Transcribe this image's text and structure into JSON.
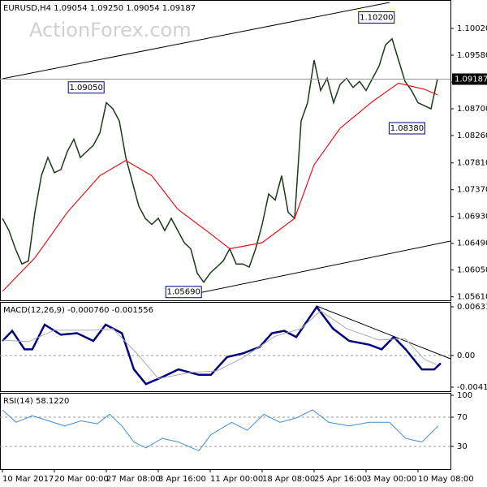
{
  "chart_data": [
    {
      "type": "line",
      "title": "EURUSD,H4  1.09054 1.09250 1.09054 1.09187",
      "watermark": "ActionForex.com",
      "xlim": [
        -0.375,
        69
      ],
      "ylim": [
        1.055533,
        1.104867
      ],
      "yticks": [
        {
          "value": 1.1002,
          "label": "1.10020"
        },
        {
          "value": 1.0958,
          "label": "1.09580"
        },
        {
          "value": 1.0914,
          "label": "1.09140"
        },
        {
          "value": 1.087,
          "label": "1.08700"
        },
        {
          "value": 1.0826,
          "label": "1.08260"
        },
        {
          "value": 1.0781,
          "label": "1.07810"
        },
        {
          "value": 1.0737,
          "label": "1.07370"
        },
        {
          "value": 1.0693,
          "label": "1.06930"
        },
        {
          "value": 1.0649,
          "label": "1.06490"
        },
        {
          "value": 1.0605,
          "label": "1.06050"
        },
        {
          "value": 1.0561,
          "label": "1.05610"
        }
      ],
      "last_price": 1.09187,
      "series": [
        {
          "color": "#1a3a1a",
          "width": 1.5,
          "values": [
            1.069,
            1.067,
            1.064,
            1.0615,
            1.062,
            1.07,
            1.076,
            1.079,
            1.0765,
            1.077,
            1.08,
            1.082,
            1.079,
            1.08,
            1.081,
            1.083,
            1.088,
            1.087,
            1.085,
            1.079,
            1.075,
            1.071,
            1.069,
            1.068,
            1.069,
            1.067,
            1.069,
            1.067,
            1.065,
            1.064,
            1.06,
            1.0585,
            1.06,
            1.061,
            1.062,
            1.064,
            1.0615,
            1.0615,
            1.061,
            1.064,
            1.068,
            1.073,
            1.072,
            1.076,
            1.07,
            1.069,
            1.085,
            1.088,
            1.095,
            1.09,
            1.092,
            1.088,
            1.091,
            1.092,
            1.0905,
            1.0915,
            1.09,
            1.092,
            1.094,
            1.0975,
            1.0985,
            1.095,
            1.0915,
            1.09,
            1.088,
            1.0875,
            1.087,
            1.0919
          ]
        },
        {
          "color": "#e8141c",
          "width": 1.2,
          "x": [
            0,
            5,
            10,
            15,
            19,
            23,
            27,
            32,
            35,
            40,
            45,
            48,
            52,
            57,
            61,
            65,
            67
          ],
          "values": [
            1.057,
            1.0625,
            1.07,
            1.076,
            1.0785,
            1.076,
            1.0705,
            1.0665,
            1.064,
            1.065,
            1.069,
            1.0778,
            1.0838,
            1.0882,
            1.0912,
            1.0902,
            1.0893
          ]
        }
      ],
      "annotations": [
        {
          "label": "1.10200",
          "value": 1.102,
          "x": 60.6
        },
        {
          "label": "1.09050",
          "value": 1.0905,
          "x": 15.9
        },
        {
          "label": "1.08380",
          "value": 1.0838,
          "x": 65.3
        },
        {
          "label": "1.05690",
          "value": 1.0569,
          "x": 30.9
        }
      ]
    },
    {
      "type": "line",
      "title": "MACD(12,26,9) -0.000760 -0.001556",
      "xlim": [
        -0.375,
        69
      ],
      "ylim": [
        -0.00463,
        0.00695
      ],
      "yticks": [
        0.006319,
        {
          "value": 0,
          "label": "0.00"
        },
        -0.004102
      ],
      "levels": [
        0
      ],
      "series": [
        {
          "color": "#000080",
          "width": 2.5,
          "x": [
            0,
            1.5,
            3.4,
            4.6,
            6.5,
            9,
            11.5,
            14,
            15.9,
            18.4,
            20.25,
            22.1,
            24.6,
            27.1,
            30.25,
            32.1,
            34.6,
            37.1,
            39.6,
            41.5,
            43.4,
            45.25,
            48.4,
            50.9,
            53.4,
            56.5,
            58.4,
            60.25,
            62.1,
            64.6,
            66.5,
            67.5
          ],
          "values": [
            0.0019,
            0.0032,
            0.0008,
            0.0008,
            0.004,
            0.0027,
            0.0029,
            0.0019,
            0.004,
            0.0029,
            -0.0018,
            -0.0037,
            -0.0028,
            -0.0018,
            -0.0025,
            -0.0025,
            -0.0002,
            0.0003,
            0.0011,
            0.0029,
            0.0032,
            0.0024,
            0.0063,
            0.0035,
            0.0019,
            0.0014,
            0.0008,
            0.0024,
            0.0008,
            -0.0018,
            -0.0018,
            -0.001
          ]
        },
        {
          "color": "#aaaaaa",
          "width": 1,
          "x": [
            0,
            4,
            8,
            14,
            17,
            21,
            24,
            29,
            33,
            37,
            42,
            46,
            49,
            53,
            58,
            62,
            65,
            67
          ],
          "values": [
            0.002,
            0.0018,
            0.0033,
            0.0033,
            0.0035,
            0,
            -0.003,
            -0.0022,
            -0.002,
            -0.0003,
            0.0025,
            0.0035,
            0.0058,
            0.0035,
            0.002,
            0.0022,
            -0.0005,
            -0.0012
          ]
        }
      ]
    },
    {
      "type": "line",
      "title": "RSI(14) 58.1220",
      "xlim": [
        -0.375,
        69
      ],
      "ylim": [
        -1.1,
        103.3
      ],
      "yticks": [
        100,
        70,
        30
      ],
      "levels": [
        70,
        30
      ],
      "xticks": [
        {
          "value": 0,
          "label": "10 Mar 2017"
        },
        {
          "value": 8,
          "label": "20 Mar 00:00"
        },
        {
          "value": 16,
          "label": "27 Mar 08:00"
        },
        {
          "value": 24,
          "label": "3 Apr 16:00"
        },
        {
          "value": 32,
          "label": "11 Apr 00:00"
        },
        {
          "value": 40,
          "label": "18 Apr 08:00"
        },
        {
          "value": 48,
          "label": "25 Apr 16:00"
        },
        {
          "value": 56,
          "label": "3 May 00:00"
        },
        {
          "value": 64,
          "label": "10 May 08:00"
        }
      ],
      "series": [
        {
          "color": "#3a8fd6",
          "width": 1,
          "x": [
            0,
            2.1,
            4.6,
            7.1,
            9.6,
            12.1,
            14.6,
            16.5,
            18.4,
            20.25,
            22.1,
            24.6,
            27.1,
            30.25,
            32.1,
            35.3,
            37.7,
            40.25,
            42.75,
            45.25,
            47.75,
            50.25,
            53.4,
            56.5,
            59.6,
            62.1,
            64.6,
            67.1
          ],
          "values": [
            80,
            63,
            72,
            65,
            58,
            65,
            61,
            74,
            58,
            36,
            28,
            41,
            36,
            24,
            46,
            63,
            52,
            74,
            63,
            69,
            80,
            63,
            58,
            63,
            63,
            41,
            36,
            58
          ]
        }
      ]
    }
  ]
}
